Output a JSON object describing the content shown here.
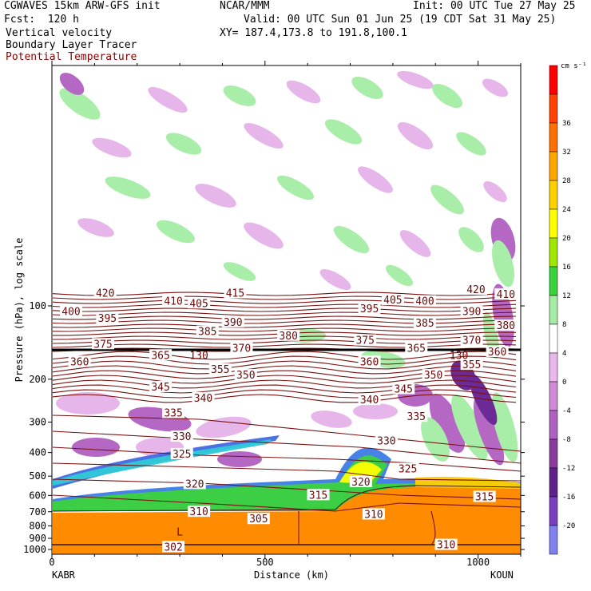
{
  "header": {
    "model": "CGWAVES 15km ARW-GFS init",
    "center": "NCAR/MMM",
    "init": "Init: 00 UTC Tue 27 May 25",
    "fcst": "Fcst:  120 h",
    "valid": "Valid: 00 UTC Sun 01 Jun 25 (19 CDT Sat 31 May 25)",
    "fields": [
      "Vertical velocity",
      "Boundary Layer Tracer",
      "Potential Temperature"
    ],
    "xy": "XY= 187.4,173.8 to 191.8,100.1"
  },
  "colors": {
    "theta": "#7a1010",
    "terrain": "#ff8c00",
    "header_field3": "#8b0000"
  },
  "chart_data": {
    "type": "contour cross-section",
    "ylabel": "Pressure (hPa), log scale",
    "xlabel": "Distance (km)",
    "y_scale": "log",
    "y_ticks": [
      100,
      200,
      300,
      400,
      500,
      600,
      700,
      800,
      900,
      1000
    ],
    "x_ticks": [
      0,
      500,
      1000
    ],
    "xlim": [
      0,
      1100
    ],
    "start_station": "KABR",
    "end_station": "KOUN",
    "colorbar": {
      "unit": "cm s⁻¹",
      "levels": [
        -20,
        -16,
        -12,
        -8,
        -4,
        0,
        4,
        8,
        12,
        16,
        20,
        24,
        28,
        32,
        36
      ],
      "colors": [
        "#8080ee",
        "#7a3fc0",
        "#60208a",
        "#8b3a9e",
        "#b060c0",
        "#d08ad8",
        "#e8b8ec",
        "#ffffff",
        "#a6eca6",
        "#3cd23c",
        "#a0e600",
        "#ffff00",
        "#ffd000",
        "#ffa500",
        "#ff7000",
        "#ff4000",
        "#ff0000"
      ]
    },
    "theta_labels": [
      {
        "label": "420",
        "x": 125,
        "p": 89
      },
      {
        "label": "415",
        "x": 430,
        "p": 89
      },
      {
        "label": "420",
        "x": 995,
        "p": 86
      },
      {
        "label": "410",
        "x": 285,
        "p": 96
      },
      {
        "label": "405",
        "x": 345,
        "p": 98
      },
      {
        "label": "405",
        "x": 800,
        "p": 95
      },
      {
        "label": "400",
        "x": 875,
        "p": 96
      },
      {
        "label": "410",
        "x": 1065,
        "p": 90
      },
      {
        "label": "400",
        "x": 45,
        "p": 106
      },
      {
        "label": "395",
        "x": 130,
        "p": 113
      },
      {
        "label": "390",
        "x": 425,
        "p": 117
      },
      {
        "label": "395",
        "x": 745,
        "p": 103
      },
      {
        "label": "390",
        "x": 985,
        "p": 106
      },
      {
        "label": "385",
        "x": 365,
        "p": 128
      },
      {
        "label": "380",
        "x": 555,
        "p": 133
      },
      {
        "label": "385",
        "x": 875,
        "p": 118
      },
      {
        "label": "380",
        "x": 1065,
        "p": 121
      },
      {
        "label": "375",
        "x": 120,
        "p": 144
      },
      {
        "label": "370",
        "x": 445,
        "p": 150
      },
      {
        "label": "375",
        "x": 735,
        "p": 139
      },
      {
        "label": "370",
        "x": 985,
        "p": 139
      },
      {
        "label": "365",
        "x": 255,
        "p": 160
      },
      {
        "label": "365",
        "x": 855,
        "p": 150
      },
      {
        "label": "360",
        "x": 65,
        "p": 170
      },
      {
        "label": "360",
        "x": 1045,
        "p": 155
      },
      {
        "label": "360",
        "x": 745,
        "p": 170
      },
      {
        "label": "355",
        "x": 395,
        "p": 183
      },
      {
        "label": "350",
        "x": 455,
        "p": 193
      },
      {
        "label": "355",
        "x": 985,
        "p": 175
      },
      {
        "label": "350",
        "x": 895,
        "p": 193
      },
      {
        "label": "345",
        "x": 255,
        "p": 216
      },
      {
        "label": "345",
        "x": 825,
        "p": 220
      },
      {
        "label": "340",
        "x": 355,
        "p": 240
      },
      {
        "label": "340",
        "x": 745,
        "p": 244
      },
      {
        "label": "335",
        "x": 285,
        "p": 276
      },
      {
        "label": "335",
        "x": 855,
        "p": 286
      },
      {
        "label": "330",
        "x": 305,
        "p": 345
      },
      {
        "label": "330",
        "x": 785,
        "p": 360
      },
      {
        "label": "325",
        "x": 305,
        "p": 407
      },
      {
        "label": "325",
        "x": 835,
        "p": 468
      },
      {
        "label": "320",
        "x": 335,
        "p": 540
      },
      {
        "label": "320",
        "x": 725,
        "p": 530
      },
      {
        "label": "315",
        "x": 625,
        "p": 600
      },
      {
        "label": "315",
        "x": 1015,
        "p": 610
      },
      {
        "label": "310",
        "x": 345,
        "p": 702
      },
      {
        "label": "310",
        "x": 755,
        "p": 720
      },
      {
        "label": "305",
        "x": 485,
        "p": 752
      },
      {
        "label": "302",
        "x": 285,
        "p": 980
      },
      {
        "label": "310",
        "x": 925,
        "p": 960
      }
    ],
    "annotations": [
      {
        "label": "L",
        "x": 300,
        "p": 850
      },
      {
        "label": "130",
        "x": 345,
        "p": 160
      },
      {
        "label": "130",
        "x": 955,
        "p": 160
      }
    ]
  }
}
